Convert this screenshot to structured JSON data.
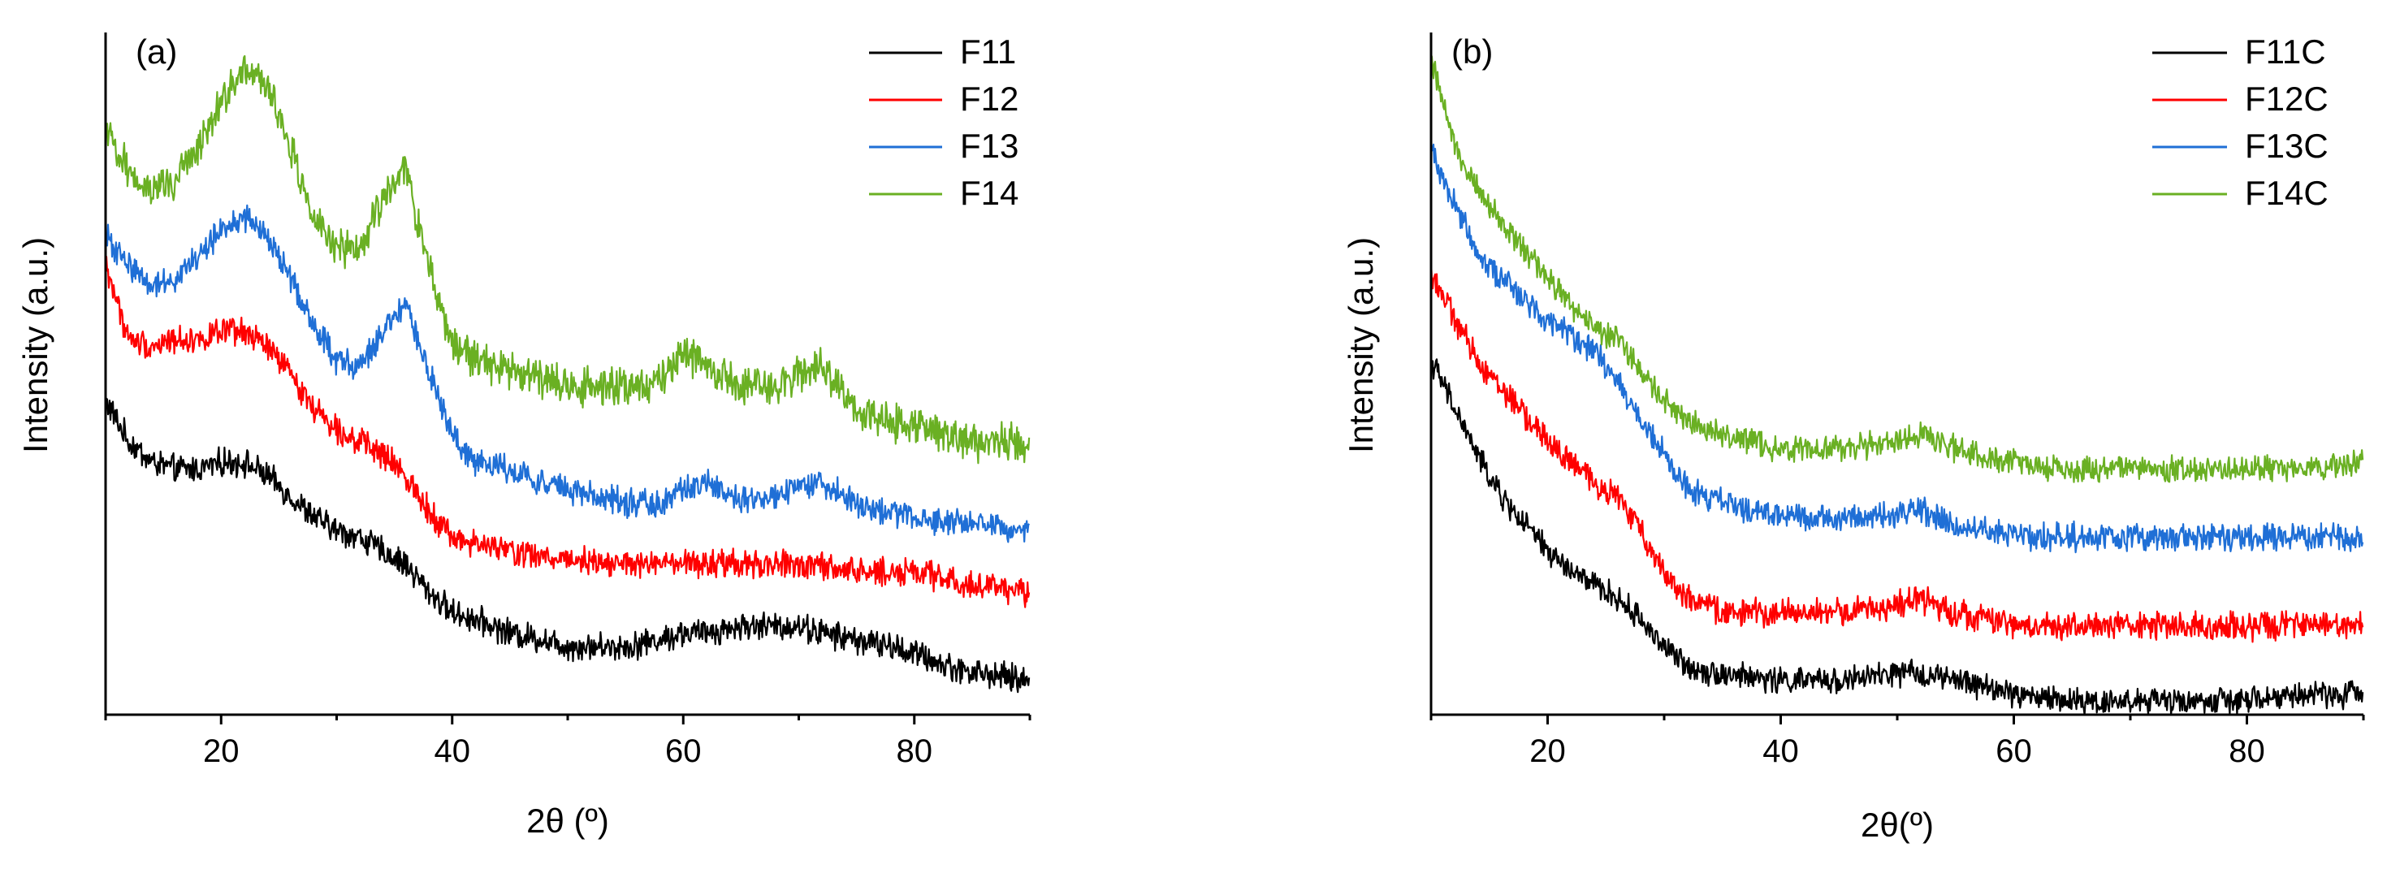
{
  "chart_data": [
    {
      "type": "line",
      "panel_label": "(a)",
      "xlabel": "2θ (º)",
      "ylabel": "Intensity (a.u.)",
      "xlim": [
        10,
        90
      ],
      "ylim": [
        0,
        100
      ],
      "xticks": [
        20,
        40,
        60,
        80
      ],
      "yticks_shown": false,
      "legend_position": "top-right",
      "series": [
        {
          "name": "F11",
          "color": "#000000",
          "noise": 1.6,
          "points": [
            [
              10,
              46
            ],
            [
              12,
              40
            ],
            [
              14,
              37
            ],
            [
              16,
              36
            ],
            [
              18,
              36
            ],
            [
              20,
              37
            ],
            [
              22,
              37
            ],
            [
              24,
              35
            ],
            [
              26,
              32
            ],
            [
              28,
              29
            ],
            [
              30,
              27
            ],
            [
              32,
              26
            ],
            [
              34,
              24
            ],
            [
              36,
              22
            ],
            [
              38,
              18
            ],
            [
              40,
              15
            ],
            [
              42,
              14
            ],
            [
              45,
              12
            ],
            [
              48,
              11
            ],
            [
              50,
              10
            ],
            [
              52,
              10
            ],
            [
              55,
              10
            ],
            [
              58,
              11
            ],
            [
              60,
              12
            ],
            [
              62,
              12
            ],
            [
              65,
              13
            ],
            [
              68,
              13
            ],
            [
              70,
              13
            ],
            [
              72,
              12
            ],
            [
              75,
              11
            ],
            [
              78,
              10
            ],
            [
              80,
              9
            ],
            [
              83,
              7
            ],
            [
              86,
              6
            ],
            [
              90,
              5
            ]
          ]
        },
        {
          "name": "F12",
          "color": "#ff0000",
          "noise": 1.6,
          "points": [
            [
              10,
              66
            ],
            [
              12,
              55
            ],
            [
              14,
              54
            ],
            [
              16,
              55
            ],
            [
              18,
              55
            ],
            [
              20,
              56
            ],
            [
              22,
              56
            ],
            [
              24,
              54
            ],
            [
              26,
              50
            ],
            [
              28,
              45
            ],
            [
              30,
              42
            ],
            [
              32,
              40
            ],
            [
              34,
              38
            ],
            [
              36,
              35
            ],
            [
              38,
              30
            ],
            [
              40,
              26
            ],
            [
              42,
              25
            ],
            [
              45,
              24
            ],
            [
              48,
              23
            ],
            [
              50,
              23
            ],
            [
              55,
              22
            ],
            [
              60,
              22
            ],
            [
              65,
              22
            ],
            [
              70,
              22
            ],
            [
              75,
              21
            ],
            [
              80,
              21
            ],
            [
              85,
              19
            ],
            [
              90,
              18
            ]
          ]
        },
        {
          "name": "F13",
          "color": "#1f6fd6",
          "noise": 1.6,
          "points": [
            [
              10,
              70
            ],
            [
              12,
              66
            ],
            [
              14,
              63
            ],
            [
              16,
              64
            ],
            [
              18,
              67
            ],
            [
              20,
              71
            ],
            [
              22,
              73
            ],
            [
              24,
              70
            ],
            [
              26,
              64
            ],
            [
              28,
              57
            ],
            [
              30,
              52
            ],
            [
              32,
              51
            ],
            [
              34,
              56
            ],
            [
              36,
              60
            ],
            [
              38,
              50
            ],
            [
              40,
              41
            ],
            [
              42,
              37
            ],
            [
              45,
              36
            ],
            [
              48,
              34
            ],
            [
              50,
              33
            ],
            [
              55,
              31
            ],
            [
              58,
              31
            ],
            [
              60,
              33
            ],
            [
              62,
              34
            ],
            [
              64,
              32
            ],
            [
              66,
              31
            ],
            [
              68,
              32
            ],
            [
              70,
              33
            ],
            [
              72,
              34
            ],
            [
              74,
              32
            ],
            [
              76,
              30
            ],
            [
              80,
              29
            ],
            [
              85,
              28
            ],
            [
              90,
              27
            ]
          ]
        },
        {
          "name": "F14",
          "color": "#6ab023",
          "noise": 2.2,
          "points": [
            [
              10,
              85
            ],
            [
              12,
              80
            ],
            [
              14,
              77
            ],
            [
              16,
              78
            ],
            [
              18,
              83
            ],
            [
              20,
              90
            ],
            [
              22,
              95
            ],
            [
              24,
              92
            ],
            [
              26,
              83
            ],
            [
              28,
              73
            ],
            [
              30,
              68
            ],
            [
              32,
              68
            ],
            [
              34,
              76
            ],
            [
              36,
              80
            ],
            [
              38,
              65
            ],
            [
              40,
              55
            ],
            [
              42,
              52
            ],
            [
              44,
              51
            ],
            [
              46,
              50
            ],
            [
              48,
              49
            ],
            [
              50,
              48
            ],
            [
              52,
              48
            ],
            [
              55,
              48
            ],
            [
              58,
              49
            ],
            [
              60,
              53
            ],
            [
              62,
              51
            ],
            [
              65,
              48
            ],
            [
              68,
              48
            ],
            [
              70,
              50
            ],
            [
              72,
              51
            ],
            [
              74,
              47
            ],
            [
              76,
              44
            ],
            [
              80,
              42
            ],
            [
              85,
              40
            ],
            [
              90,
              40
            ]
          ]
        }
      ]
    },
    {
      "type": "line",
      "panel_label": "(b)",
      "xlabel": "2θ(º)",
      "ylabel": "Intensity (a.u.)",
      "xlim": [
        10,
        90
      ],
      "ylim": [
        0,
        100
      ],
      "xticks": [
        20,
        40,
        60,
        80
      ],
      "yticks_shown": false,
      "legend_position": "top-right",
      "series": [
        {
          "name": "F11C",
          "color": "#000000",
          "noise": 1.5,
          "points": [
            [
              10,
              52
            ],
            [
              12,
              45
            ],
            [
              14,
              38
            ],
            [
              16,
              32
            ],
            [
              18,
              28
            ],
            [
              20,
              24
            ],
            [
              22,
              21
            ],
            [
              24,
              19
            ],
            [
              26,
              17
            ],
            [
              28,
              14
            ],
            [
              30,
              10
            ],
            [
              32,
              7
            ],
            [
              35,
              6
            ],
            [
              40,
              5
            ],
            [
              45,
              5
            ],
            [
              50,
              6
            ],
            [
              52,
              6
            ],
            [
              55,
              5
            ],
            [
              58,
              4
            ],
            [
              60,
              3
            ],
            [
              65,
              2
            ],
            [
              70,
              2
            ],
            [
              75,
              2
            ],
            [
              80,
              2
            ],
            [
              85,
              3
            ],
            [
              90,
              3
            ]
          ]
        },
        {
          "name": "F12C",
          "color": "#ff0000",
          "noise": 1.6,
          "points": [
            [
              10,
              65
            ],
            [
              12,
              58
            ],
            [
              14,
              52
            ],
            [
              16,
              48
            ],
            [
              18,
              44
            ],
            [
              20,
              40
            ],
            [
              22,
              37
            ],
            [
              24,
              34
            ],
            [
              26,
              32
            ],
            [
              28,
              27
            ],
            [
              30,
              21
            ],
            [
              32,
              17
            ],
            [
              35,
              15
            ],
            [
              40,
              15
            ],
            [
              45,
              15
            ],
            [
              50,
              16
            ],
            [
              52,
              17
            ],
            [
              55,
              15
            ],
            [
              58,
              14
            ],
            [
              60,
              13
            ],
            [
              65,
              13
            ],
            [
              70,
              13
            ],
            [
              75,
              13
            ],
            [
              80,
              13
            ],
            [
              85,
              13
            ],
            [
              90,
              13
            ]
          ]
        },
        {
          "name": "F13C",
          "color": "#1f6fd6",
          "noise": 1.6,
          "points": [
            [
              10,
              83
            ],
            [
              12,
              75
            ],
            [
              14,
              68
            ],
            [
              16,
              64
            ],
            [
              18,
              61
            ],
            [
              20,
              58
            ],
            [
              22,
              56
            ],
            [
              24,
              53
            ],
            [
              26,
              49
            ],
            [
              28,
              43
            ],
            [
              30,
              38
            ],
            [
              32,
              33
            ],
            [
              35,
              31
            ],
            [
              40,
              29
            ],
            [
              45,
              29
            ],
            [
              50,
              29
            ],
            [
              52,
              30
            ],
            [
              55,
              28
            ],
            [
              58,
              27
            ],
            [
              60,
              26
            ],
            [
              65,
              26
            ],
            [
              70,
              26
            ],
            [
              75,
              26
            ],
            [
              80,
              26
            ],
            [
              85,
              26
            ],
            [
              90,
              26
            ]
          ]
        },
        {
          "name": "F14C",
          "color": "#6ab023",
          "noise": 1.5,
          "points": [
            [
              10,
              96
            ],
            [
              12,
              84
            ],
            [
              14,
              77
            ],
            [
              16,
              72
            ],
            [
              18,
              68
            ],
            [
              20,
              64
            ],
            [
              22,
              60
            ],
            [
              24,
              57
            ],
            [
              26,
              55
            ],
            [
              28,
              50
            ],
            [
              30,
              46
            ],
            [
              32,
              43
            ],
            [
              35,
              41
            ],
            [
              40,
              39
            ],
            [
              45,
              39
            ],
            [
              50,
              40
            ],
            [
              52,
              41
            ],
            [
              55,
              39
            ],
            [
              58,
              38
            ],
            [
              60,
              37
            ],
            [
              65,
              36
            ],
            [
              70,
              36
            ],
            [
              75,
              36
            ],
            [
              80,
              36
            ],
            [
              85,
              36
            ],
            [
              90,
              37
            ]
          ]
        }
      ]
    }
  ]
}
